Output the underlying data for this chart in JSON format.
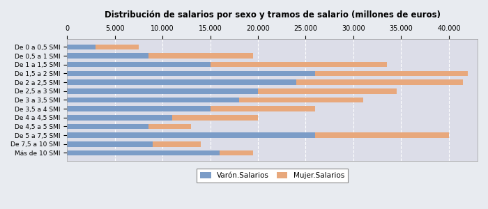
{
  "title": "Distribución de salarios por sexo y tramos de salario (millones de euros)",
  "categories": [
    "De 0 a 0,5 SMI",
    "De 0,5 a 1 SMI",
    "De 1 a 1,5 SMI",
    "De 1,5 a 2 SMI",
    "De 2 a 2,5 SMI",
    "De 2,5 a 3 SMI",
    "De 3 a 3,5 SMI",
    "De 3,5 a 4 SMI",
    "De 4 a 4,5 SMI",
    "De 4,5 a 5 SMI",
    "De 5 a 7,5 SMI",
    "De 7,5 a 10 SMI",
    "Más de 10 SMI"
  ],
  "varon": [
    3000,
    8500,
    15000,
    26000,
    24000,
    20000,
    18000,
    15000,
    11000,
    8500,
    26000,
    9000,
    16000
  ],
  "mujer": [
    4500,
    11000,
    18500,
    16000,
    17500,
    14500,
    13000,
    11000,
    9000,
    4500,
    14000,
    5000,
    3500
  ],
  "varon_color": "#7B9CC7",
  "mujer_color": "#E8A87C",
  "bg_color": "#E8EBF0",
  "plot_bg": "#DCDDE8",
  "grid_color": "#FFFFFF",
  "xlim": [
    0,
    43000
  ],
  "xticks": [
    0,
    5000,
    10000,
    15000,
    20000,
    25000,
    30000,
    35000,
    40000
  ],
  "legend_labels": [
    "Varón.Salarios",
    "Mujer.Salarios"
  ],
  "bar_height": 0.6
}
